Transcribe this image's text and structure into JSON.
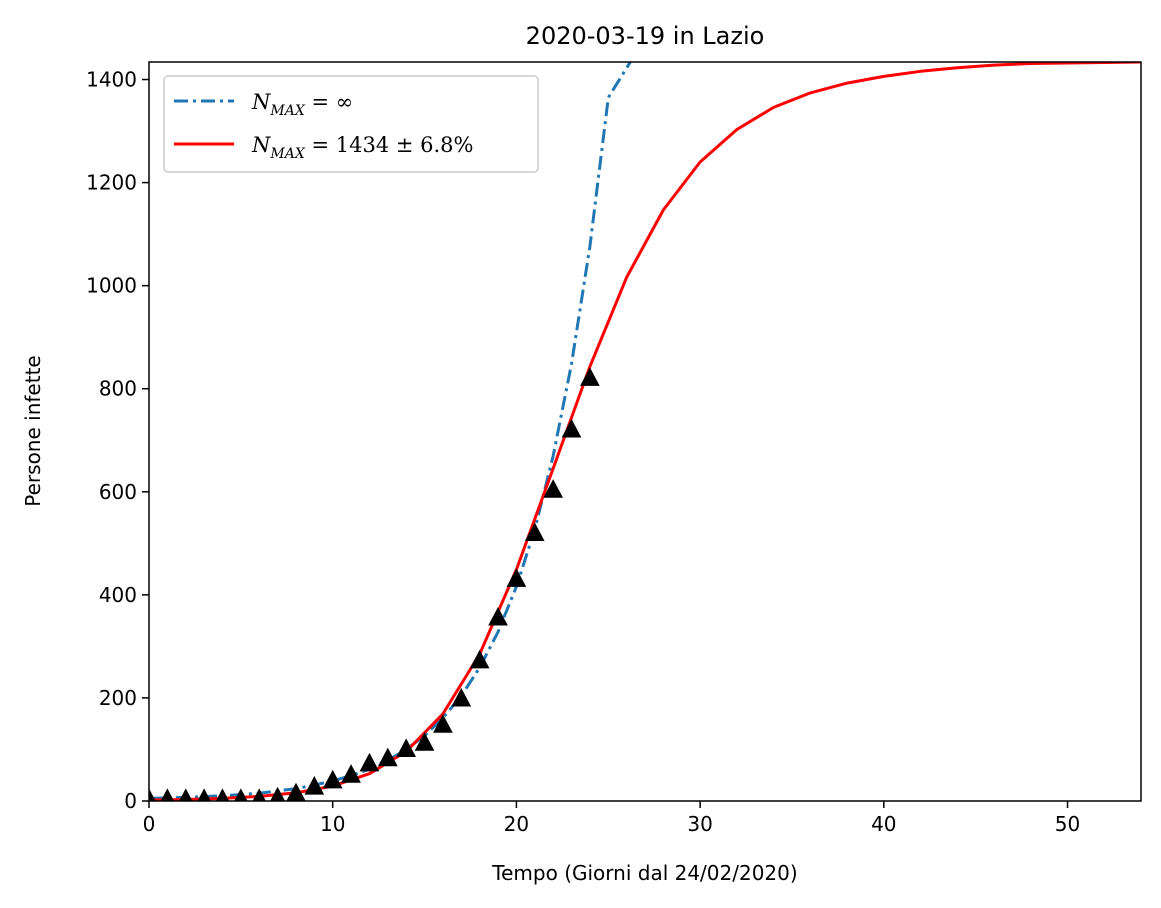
{
  "chart_data": {
    "type": "line",
    "title": "2020-03-19 in Lazio",
    "xlabel": "Tempo (Giorni dal 24/02/2020)",
    "ylabel": "Persone infette",
    "xlim": [
      0,
      54
    ],
    "ylim": [
      0,
      1434
    ],
    "xticks": [
      0,
      10,
      20,
      30,
      40,
      50
    ],
    "yticks": [
      0,
      200,
      400,
      600,
      800,
      1000,
      1200,
      1400
    ],
    "grid": false,
    "legend_position": "top-left",
    "series": [
      {
        "name": "N_MAX = ∞",
        "style": "dash-dot",
        "color": "#1f77b4",
        "x": [
          0,
          2,
          4,
          6,
          8,
          9,
          10,
          11,
          12,
          13,
          14,
          15,
          16,
          17,
          18,
          19,
          20,
          21,
          22,
          23,
          24,
          25,
          26.2
        ],
        "y": [
          5,
          7,
          10,
          15,
          24,
          31,
          39,
          49,
          62,
          79,
          100,
          127,
          161,
          204,
          259,
          328,
          416,
          527,
          669,
          848,
          1076,
          1365,
          1434
        ]
      },
      {
        "name": "N_MAX = 1434 ± 6.8%",
        "style": "solid",
        "color": "#ff0000",
        "x": [
          0,
          2,
          4,
          6,
          8,
          10,
          12,
          14,
          16,
          18,
          20,
          22,
          24,
          26,
          28,
          30,
          32,
          34,
          36,
          38,
          40,
          42,
          44,
          46,
          48,
          50,
          54
        ],
        "y": [
          2,
          3,
          5,
          9,
          16,
          29,
          53,
          96,
          169,
          285,
          449,
          645,
          843,
          1016,
          1147,
          1240,
          1303,
          1346,
          1374,
          1393,
          1406,
          1416,
          1423,
          1428,
          1431,
          1432,
          1434
        ]
      },
      {
        "name": "",
        "style": "markers-triangle",
        "color": "#000000",
        "x": [
          0,
          1,
          2,
          3,
          4,
          5,
          6,
          7,
          8,
          9,
          10,
          11,
          12,
          13,
          14,
          15,
          16,
          17,
          18,
          19,
          20,
          21,
          22,
          23,
          24
        ],
        "y": [
          3,
          3,
          3,
          3,
          3,
          3,
          3,
          6,
          14,
          27,
          39,
          50,
          72,
          82,
          100,
          112,
          147,
          198,
          272,
          355,
          430,
          519,
          603,
          720,
          820
        ]
      }
    ],
    "legend": [
      {
        "label_main": "N",
        "label_sub": "MAX",
        "label_rest": " = ∞",
        "color": "#1f77b4",
        "style": "dash-dot"
      },
      {
        "label_main": "N",
        "label_sub": "MAX",
        "label_rest": " = 1434 ± 6.8%",
        "color": "#ff0000",
        "style": "solid"
      }
    ]
  }
}
